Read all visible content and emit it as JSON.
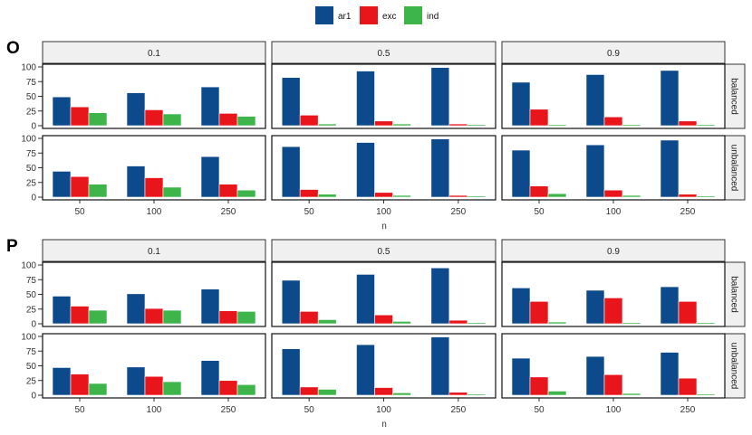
{
  "legend": {
    "placement": "top-center",
    "entries": [
      {
        "label": "ar1",
        "color": "#0D4A8C"
      },
      {
        "label": "exc",
        "color": "#E8151B"
      },
      {
        "label": "ind",
        "color": "#3DB54A"
      }
    ]
  },
  "panels": [
    {
      "letter": "O",
      "xlabel": "n"
    },
    {
      "letter": "P",
      "xlabel": "n"
    }
  ],
  "chart_data": {
    "type": "bar",
    "facet_columns": [
      "0.1",
      "0.5",
      "0.9"
    ],
    "facet_rows": [
      "balanced",
      "unbalanced"
    ],
    "categories": [
      "50",
      "100",
      "250"
    ],
    "series_names": [
      "ar1",
      "exc",
      "ind"
    ],
    "colors": [
      "#0D4A8C",
      "#E8151B",
      "#3DB54A"
    ],
    "xlabel": "n",
    "ylim": [
      0,
      100
    ],
    "yticks": [
      0,
      25,
      50,
      75,
      100
    ],
    "grid": false,
    "panels": [
      {
        "label": "O",
        "values": {
          "balanced": {
            "0.1": [
              [
                49,
                32,
                22
              ],
              [
                56,
                27,
                20
              ],
              [
                66,
                21,
                16
              ]
            ],
            "0.5": [
              [
                82,
                18,
                3
              ],
              [
                93,
                8,
                3
              ],
              [
                99,
                3,
                2
              ]
            ],
            "0.9": [
              [
                74,
                28,
                2
              ],
              [
                87,
                15,
                2
              ],
              [
                94,
                8,
                2
              ]
            ]
          },
          "unbalanced": {
            "0.1": [
              [
                44,
                35,
                22
              ],
              [
                53,
                33,
                17
              ],
              [
                69,
                22,
                12
              ]
            ],
            "0.5": [
              [
                86,
                13,
                5
              ],
              [
                93,
                8,
                3
              ],
              [
                99,
                3,
                2
              ]
            ],
            "0.9": [
              [
                80,
                19,
                6
              ],
              [
                89,
                12,
                3
              ],
              [
                97,
                5,
                2
              ]
            ]
          }
        }
      },
      {
        "label": "P",
        "values": {
          "balanced": {
            "0.1": [
              [
                47,
                30,
                23
              ],
              [
                51,
                26,
                23
              ],
              [
                59,
                22,
                21
              ]
            ],
            "0.5": [
              [
                74,
                21,
                7
              ],
              [
                84,
                15,
                4
              ],
              [
                95,
                6,
                2
              ]
            ],
            "0.9": [
              [
                61,
                38,
                3
              ],
              [
                57,
                44,
                2
              ],
              [
                63,
                38,
                2
              ]
            ]
          },
          "unbalanced": {
            "0.1": [
              [
                47,
                36,
                20
              ],
              [
                48,
                32,
                23
              ],
              [
                59,
                25,
                18
              ]
            ],
            "0.5": [
              [
                79,
                14,
                10
              ],
              [
                86,
                13,
                4
              ],
              [
                99,
                5,
                2
              ]
            ],
            "0.9": [
              [
                63,
                31,
                7
              ],
              [
                66,
                35,
                3
              ],
              [
                73,
                29,
                2
              ]
            ]
          }
        }
      }
    ]
  }
}
